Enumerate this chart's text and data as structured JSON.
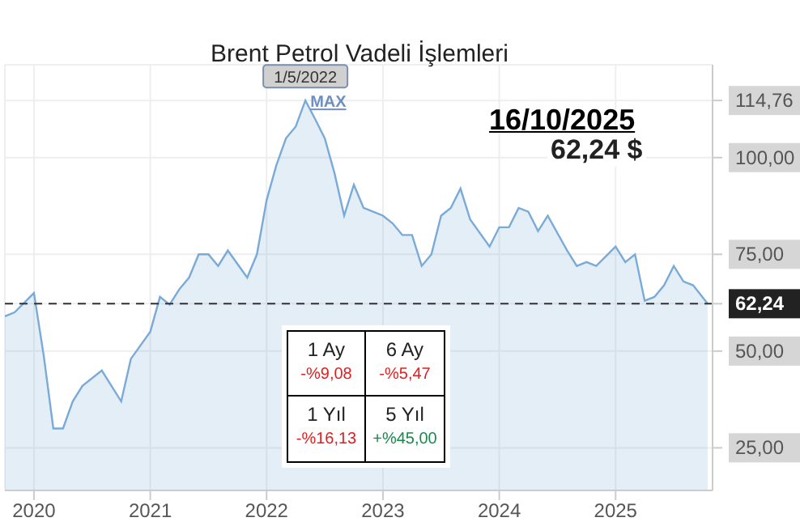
{
  "chart_data": {
    "type": "area",
    "title": "Brent Petrol Vadeli İşlemleri",
    "x": [
      "2019-10",
      "2019-11",
      "2020-01",
      "2020-02",
      "2020-03",
      "2020-04",
      "2020-05",
      "2020-06",
      "2020-08",
      "2020-10",
      "2020-11",
      "2021-01",
      "2021-02",
      "2021-03",
      "2021-04",
      "2021-05",
      "2021-06",
      "2021-07",
      "2021-08",
      "2021-09",
      "2021-11",
      "2021-12",
      "2022-01",
      "2022-02",
      "2022-03",
      "2022-04",
      "2022-05",
      "2022-06",
      "2022-07",
      "2022-08",
      "2022-09",
      "2022-10",
      "2022-11",
      "2022-12",
      "2023-01",
      "2023-02",
      "2023-03",
      "2023-04",
      "2023-05",
      "2023-06",
      "2023-07",
      "2023-08",
      "2023-09",
      "2023-10",
      "2023-12",
      "2024-01",
      "2024-02",
      "2024-03",
      "2024-04",
      "2024-05",
      "2024-06",
      "2024-08",
      "2024-09",
      "2024-10",
      "2024-11",
      "2025-01",
      "2025-02",
      "2025-03",
      "2025-04",
      "2025-05",
      "2025-06",
      "2025-07",
      "2025-08",
      "2025-09",
      "2025-10-16"
    ],
    "series": [
      {
        "color": "#7aaad8",
        "values": [
          59,
          60,
          65,
          49,
          30,
          30,
          37,
          41,
          45,
          37,
          48,
          55,
          64,
          62,
          66,
          69,
          75,
          75,
          72,
          76,
          69,
          75,
          89,
          98,
          105,
          108,
          114.76,
          110,
          105,
          96,
          85,
          93,
          87,
          86,
          85,
          83,
          80,
          80,
          72,
          75,
          85,
          87,
          92,
          84,
          77,
          82,
          82,
          87,
          86,
          81,
          85,
          76,
          72,
          73,
          72,
          77,
          73,
          75,
          63,
          64,
          67,
          72,
          68,
          67,
          62.24
        ]
      }
    ],
    "xlim": [
      "2019-10",
      "2025-11"
    ],
    "xticks": [
      "2020",
      "2021",
      "2022",
      "2023",
      "2024",
      "2025"
    ],
    "ylim": [
      14,
      124
    ],
    "yticks": [
      {
        "value": 25,
        "label": "25,00"
      },
      {
        "value": 50,
        "label": "50,00"
      },
      {
        "value": 75,
        "label": "75,00"
      },
      {
        "value": 100,
        "label": "100,00"
      },
      {
        "value": 114.76,
        "label": "114,76"
      },
      {
        "value": 62.24,
        "label": "62,24"
      }
    ],
    "ref_lines": [
      {
        "axis": "y",
        "value": 62.24,
        "line_style": "dashed",
        "color": "#333333"
      }
    ],
    "grid": true,
    "annotations": [
      "16/10/2025",
      "62,24 $",
      "1 Ay",
      "-%9,08",
      "6 Ay",
      "-%5,47",
      "1 Yıl",
      "-%16,13",
      "5 Yıl",
      "+%45,00",
      {
        "text": "1/5/2022",
        "x": "2022-05",
        "y": 114.76
      },
      {
        "text": "MAX",
        "x": "2022-05",
        "y": 114.76
      }
    ]
  }
}
